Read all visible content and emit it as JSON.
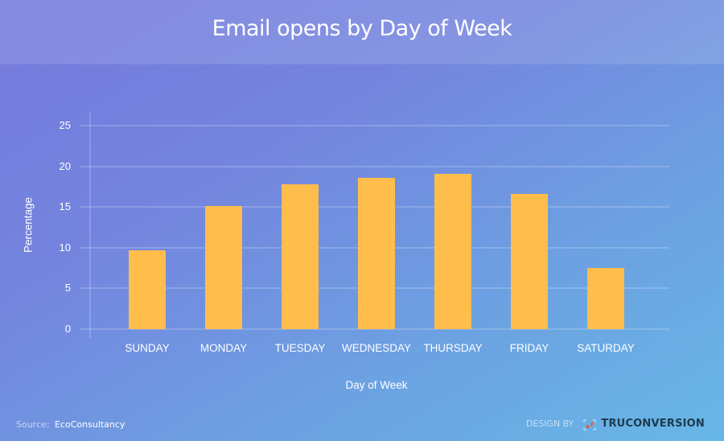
{
  "header": {
    "title": "Email opens by Day of Week"
  },
  "chart_data": {
    "type": "bar",
    "title": "Email opens by Day of Week",
    "xlabel": "Day of Week",
    "ylabel": "Percentage",
    "categories": [
      "SUNDAY",
      "MONDAY",
      "TUESDAY",
      "WEDNESDAY",
      "THURSDAY",
      "FRIDAY",
      "SATURDAY"
    ],
    "values": [
      9.7,
      15.1,
      17.8,
      18.6,
      19.1,
      16.6,
      7.5
    ],
    "ylim": [
      0,
      25
    ],
    "yticks": [
      "0",
      "5",
      "10",
      "15",
      "20",
      "25"
    ],
    "grid": true,
    "legend": null,
    "bar_color": "#ffbd4c"
  },
  "footer": {
    "source_label": "Source:",
    "source_value": "EcoConsultancy",
    "credit_label": "DESIGN BY",
    "brand": "TRUCONVERSION"
  }
}
